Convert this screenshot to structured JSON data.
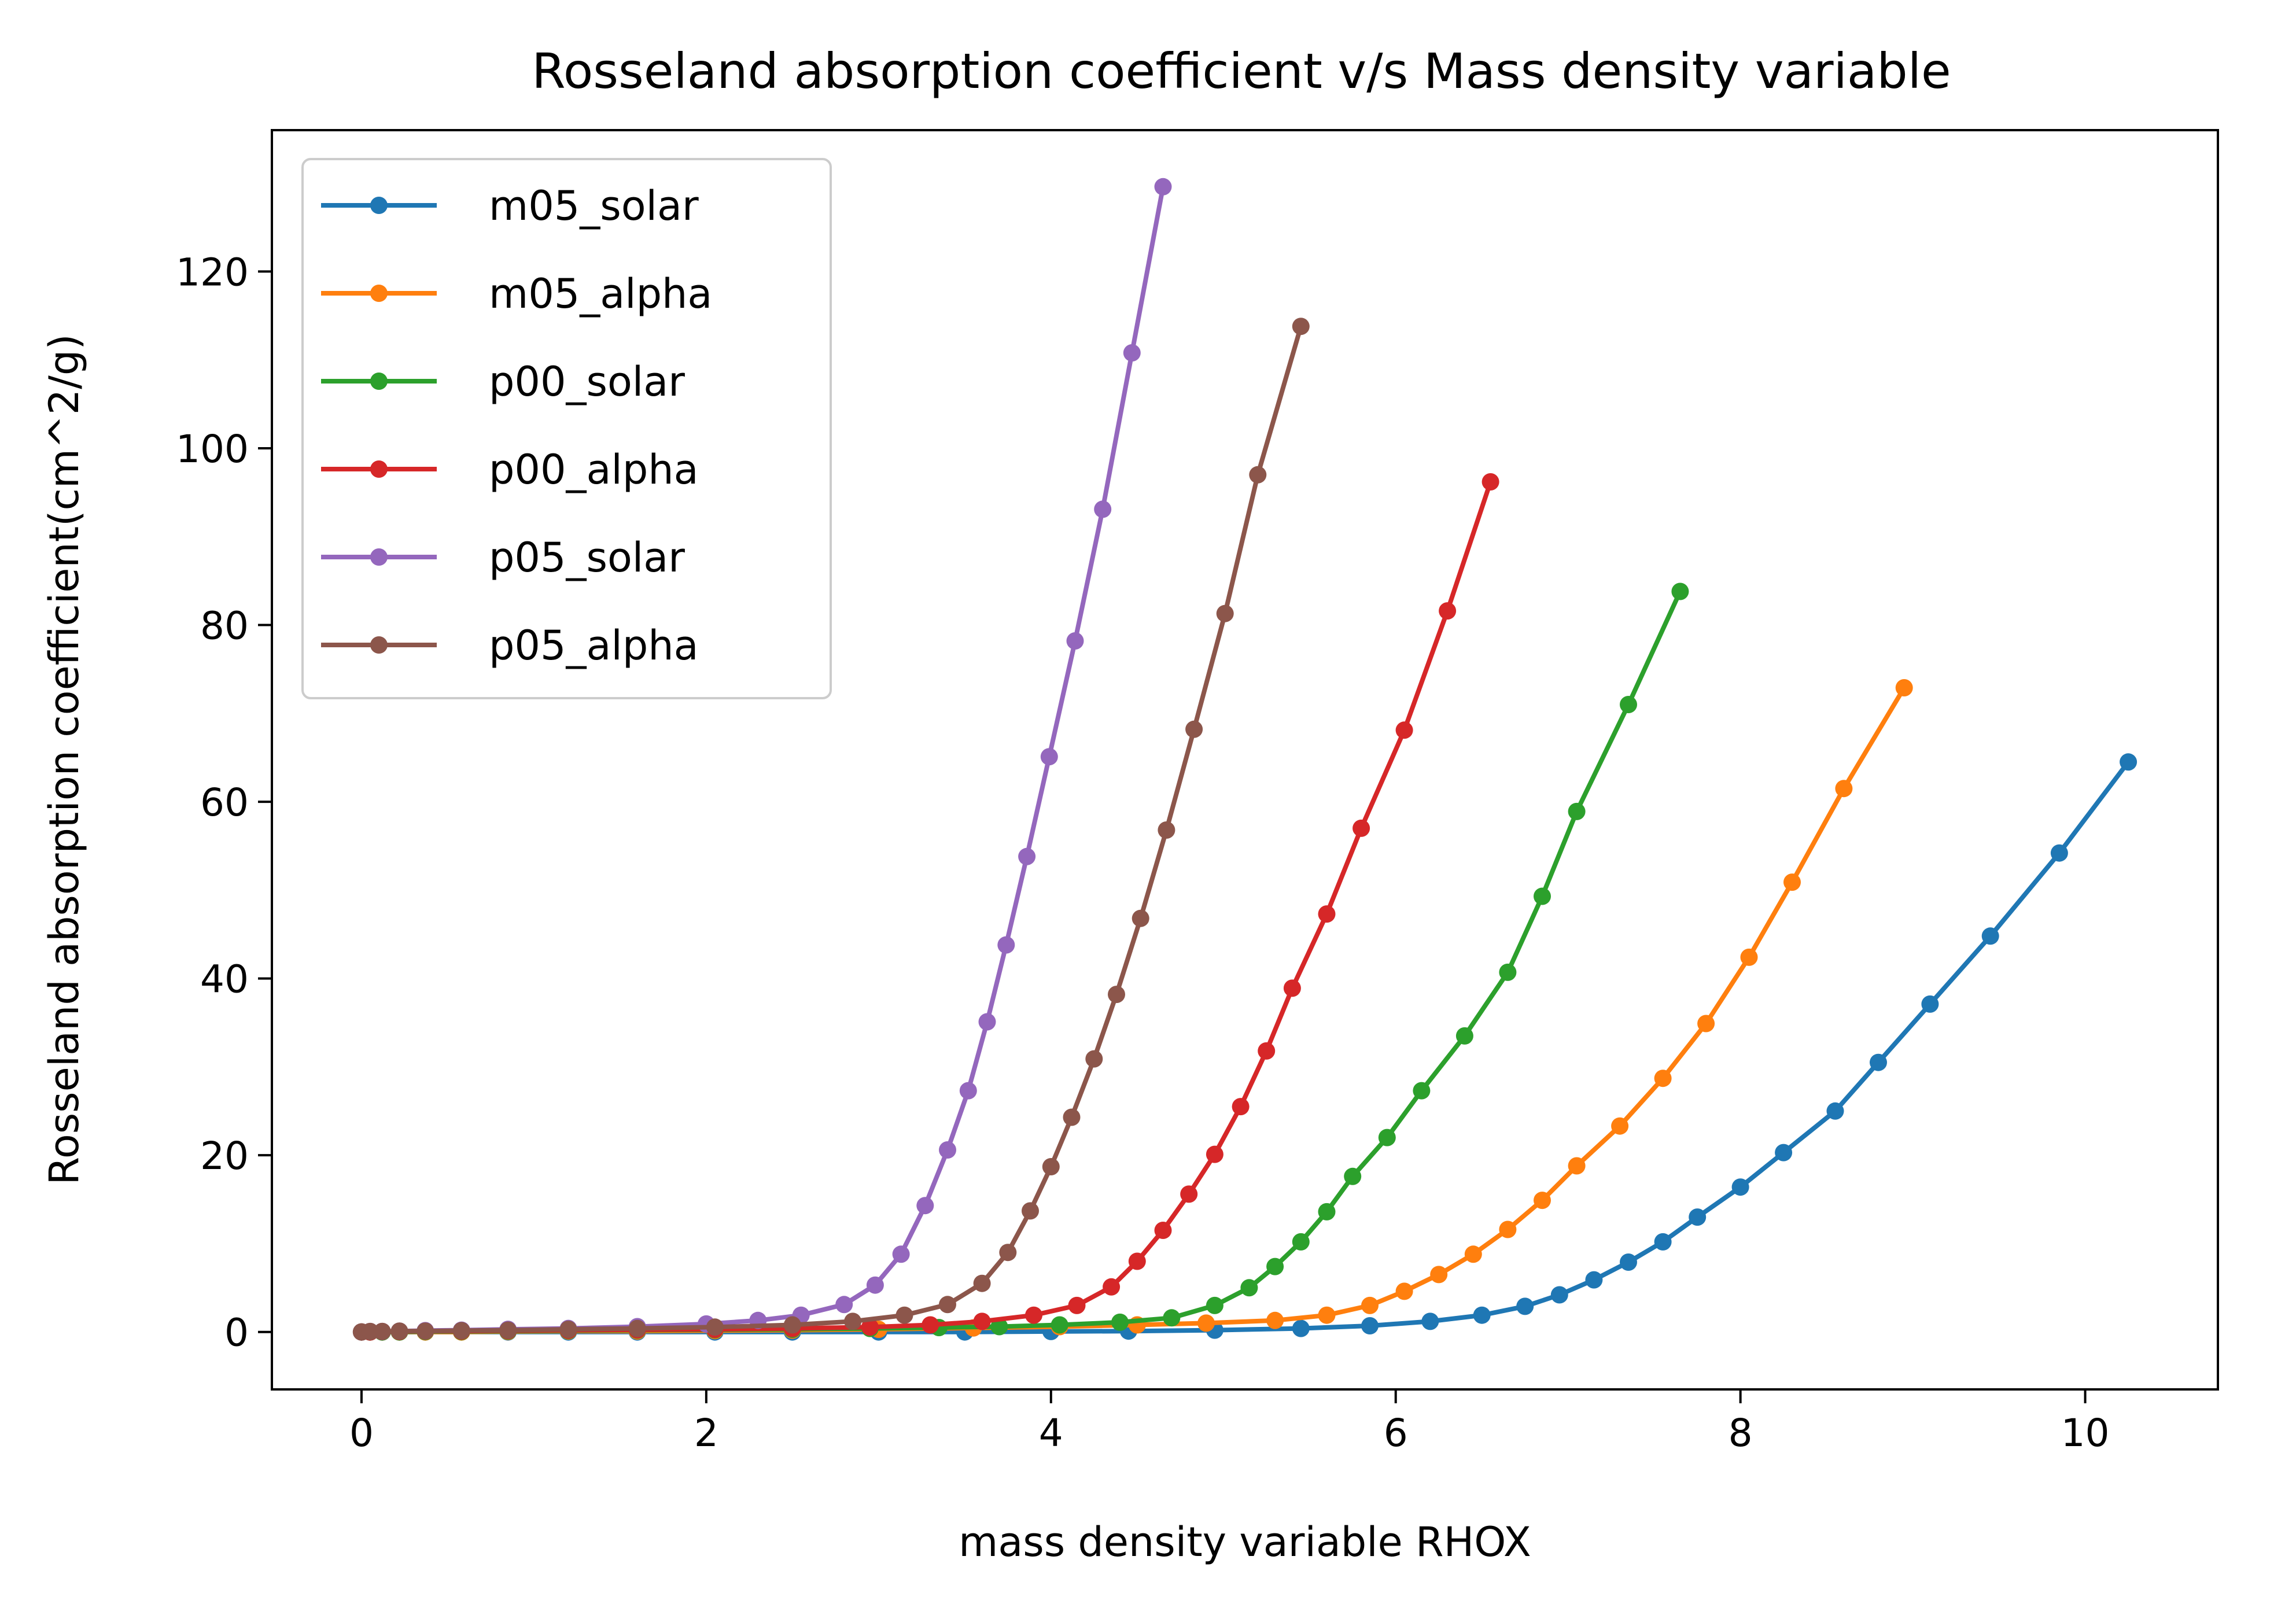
{
  "chart_data": {
    "type": "line",
    "title": "Rosseland absorption coefficient v/s Mass density variable",
    "xlabel": "mass density variable RHOX",
    "ylabel": "Rosseland absorption coefficient(cm^2/g)",
    "xlim": [
      -0.52,
      10.77
    ],
    "ylim": [
      -6.5,
      136
    ],
    "xticks": [
      0,
      2,
      4,
      6,
      8,
      10
    ],
    "yticks": [
      0,
      20,
      40,
      60,
      80,
      100,
      120
    ],
    "grid": false,
    "legend": "top-left",
    "series": [
      {
        "name": "m05_solar",
        "color": "#1f77b4",
        "points": [
          [
            0.0,
            0.0
          ],
          [
            0.05,
            0.0
          ],
          [
            0.12,
            0.0
          ],
          [
            0.22,
            0.0
          ],
          [
            0.37,
            0.0
          ],
          [
            0.58,
            0.0
          ],
          [
            0.85,
            0.0
          ],
          [
            1.2,
            0.0
          ],
          [
            1.6,
            0.0
          ],
          [
            2.05,
            0.0
          ],
          [
            2.5,
            0.0
          ],
          [
            3.0,
            0.0
          ],
          [
            3.5,
            0.0
          ],
          [
            4.0,
            0.05
          ],
          [
            4.45,
            0.1
          ],
          [
            4.95,
            0.2
          ],
          [
            5.45,
            0.4
          ],
          [
            5.85,
            0.7
          ],
          [
            6.2,
            1.2
          ],
          [
            6.5,
            1.9
          ],
          [
            6.75,
            2.9
          ],
          [
            6.95,
            4.2
          ],
          [
            7.15,
            5.9
          ],
          [
            7.35,
            7.9
          ],
          [
            7.55,
            10.2
          ],
          [
            7.75,
            13.0
          ],
          [
            8.0,
            16.4
          ],
          [
            8.25,
            20.3
          ],
          [
            8.55,
            25.0
          ],
          [
            8.8,
            30.5
          ],
          [
            9.1,
            37.1
          ],
          [
            9.45,
            44.8
          ],
          [
            9.85,
            54.2
          ],
          [
            10.25,
            64.5
          ]
        ]
      },
      {
        "name": "m05_alpha",
        "color": "#ff7f0e",
        "points": [
          [
            0.0,
            0.0
          ],
          [
            0.05,
            0.0
          ],
          [
            0.12,
            0.0
          ],
          [
            0.22,
            0.0
          ],
          [
            0.37,
            0.0
          ],
          [
            0.58,
            0.0
          ],
          [
            0.85,
            0.05
          ],
          [
            1.2,
            0.1
          ],
          [
            1.6,
            0.1
          ],
          [
            2.05,
            0.15
          ],
          [
            2.5,
            0.2
          ],
          [
            3.0,
            0.3
          ],
          [
            3.55,
            0.45
          ],
          [
            4.05,
            0.6
          ],
          [
            4.5,
            0.8
          ],
          [
            4.9,
            1.0
          ],
          [
            5.3,
            1.3
          ],
          [
            5.6,
            1.9
          ],
          [
            5.85,
            3.0
          ],
          [
            6.05,
            4.6
          ],
          [
            6.25,
            6.5
          ],
          [
            6.45,
            8.8
          ],
          [
            6.65,
            11.6
          ],
          [
            6.85,
            14.9
          ],
          [
            7.05,
            18.8
          ],
          [
            7.3,
            23.3
          ],
          [
            7.55,
            28.7
          ],
          [
            7.8,
            34.9
          ],
          [
            8.05,
            42.4
          ],
          [
            8.3,
            50.9
          ],
          [
            8.6,
            61.5
          ],
          [
            8.95,
            72.9
          ]
        ]
      },
      {
        "name": "p00_solar",
        "color": "#2ca02c",
        "points": [
          [
            0.0,
            0.0
          ],
          [
            0.05,
            0.0
          ],
          [
            0.12,
            0.0
          ],
          [
            0.22,
            0.0
          ],
          [
            0.37,
            0.05
          ],
          [
            0.58,
            0.05
          ],
          [
            0.85,
            0.1
          ],
          [
            1.2,
            0.15
          ],
          [
            1.6,
            0.2
          ],
          [
            2.05,
            0.25
          ],
          [
            2.5,
            0.3
          ],
          [
            2.95,
            0.4
          ],
          [
            3.35,
            0.5
          ],
          [
            3.7,
            0.6
          ],
          [
            4.05,
            0.8
          ],
          [
            4.4,
            1.1
          ],
          [
            4.7,
            1.6
          ],
          [
            4.95,
            3.0
          ],
          [
            5.15,
            5.0
          ],
          [
            5.3,
            7.4
          ],
          [
            5.45,
            10.2
          ],
          [
            5.6,
            13.6
          ],
          [
            5.75,
            17.6
          ],
          [
            5.95,
            22.0
          ],
          [
            6.15,
            27.3
          ],
          [
            6.4,
            33.5
          ],
          [
            6.65,
            40.7
          ],
          [
            6.85,
            49.3
          ],
          [
            7.05,
            58.9
          ],
          [
            7.35,
            71.0
          ],
          [
            7.65,
            83.8
          ]
        ]
      },
      {
        "name": "p00_alpha",
        "color": "#d62728",
        "points": [
          [
            0.0,
            0.0
          ],
          [
            0.05,
            0.0
          ],
          [
            0.12,
            0.05
          ],
          [
            0.22,
            0.05
          ],
          [
            0.37,
            0.1
          ],
          [
            0.58,
            0.1
          ],
          [
            0.85,
            0.15
          ],
          [
            1.2,
            0.2
          ],
          [
            1.6,
            0.25
          ],
          [
            2.05,
            0.3
          ],
          [
            2.5,
            0.4
          ],
          [
            2.95,
            0.55
          ],
          [
            3.3,
            0.8
          ],
          [
            3.6,
            1.2
          ],
          [
            3.9,
            1.9
          ],
          [
            4.15,
            3.0
          ],
          [
            4.35,
            5.1
          ],
          [
            4.5,
            8.0
          ],
          [
            4.65,
            11.5
          ],
          [
            4.8,
            15.6
          ],
          [
            4.95,
            20.1
          ],
          [
            5.1,
            25.5
          ],
          [
            5.25,
            31.8
          ],
          [
            5.4,
            38.9
          ],
          [
            5.6,
            47.3
          ],
          [
            5.8,
            57.0
          ],
          [
            6.05,
            68.1
          ],
          [
            6.3,
            81.6
          ],
          [
            6.55,
            96.2
          ]
        ]
      },
      {
        "name": "p05_solar",
        "color": "#9467bd",
        "points": [
          [
            0.0,
            0.0
          ],
          [
            0.05,
            0.05
          ],
          [
            0.12,
            0.05
          ],
          [
            0.22,
            0.1
          ],
          [
            0.37,
            0.15
          ],
          [
            0.58,
            0.2
          ],
          [
            0.85,
            0.3
          ],
          [
            1.2,
            0.4
          ],
          [
            1.6,
            0.6
          ],
          [
            2.0,
            0.9
          ],
          [
            2.3,
            1.3
          ],
          [
            2.55,
            1.9
          ],
          [
            2.8,
            3.1
          ],
          [
            2.98,
            5.3
          ],
          [
            3.13,
            8.8
          ],
          [
            3.27,
            14.3
          ],
          [
            3.4,
            20.6
          ],
          [
            3.52,
            27.3
          ],
          [
            3.63,
            35.1
          ],
          [
            3.74,
            43.8
          ],
          [
            3.86,
            53.8
          ],
          [
            3.99,
            65.1
          ],
          [
            4.14,
            78.2
          ],
          [
            4.3,
            93.1
          ],
          [
            4.47,
            110.8
          ],
          [
            4.65,
            129.6
          ]
        ]
      },
      {
        "name": "p05_alpha",
        "color": "#8c564b",
        "points": [
          [
            0.0,
            0.0
          ],
          [
            0.05,
            0.05
          ],
          [
            0.12,
            0.05
          ],
          [
            0.22,
            0.1
          ],
          [
            0.37,
            0.1
          ],
          [
            0.58,
            0.15
          ],
          [
            0.85,
            0.2
          ],
          [
            1.2,
            0.3
          ],
          [
            1.6,
            0.4
          ],
          [
            2.05,
            0.55
          ],
          [
            2.5,
            0.8
          ],
          [
            2.85,
            1.2
          ],
          [
            3.15,
            1.9
          ],
          [
            3.4,
            3.1
          ],
          [
            3.6,
            5.5
          ],
          [
            3.75,
            9.0
          ],
          [
            3.88,
            13.7
          ],
          [
            4.0,
            18.7
          ],
          [
            4.12,
            24.3
          ],
          [
            4.25,
            30.9
          ],
          [
            4.38,
            38.2
          ],
          [
            4.52,
            46.8
          ],
          [
            4.67,
            56.8
          ],
          [
            4.83,
            68.2
          ],
          [
            5.01,
            81.3
          ],
          [
            5.2,
            97.0
          ],
          [
            5.45,
            113.8
          ]
        ]
      }
    ]
  }
}
